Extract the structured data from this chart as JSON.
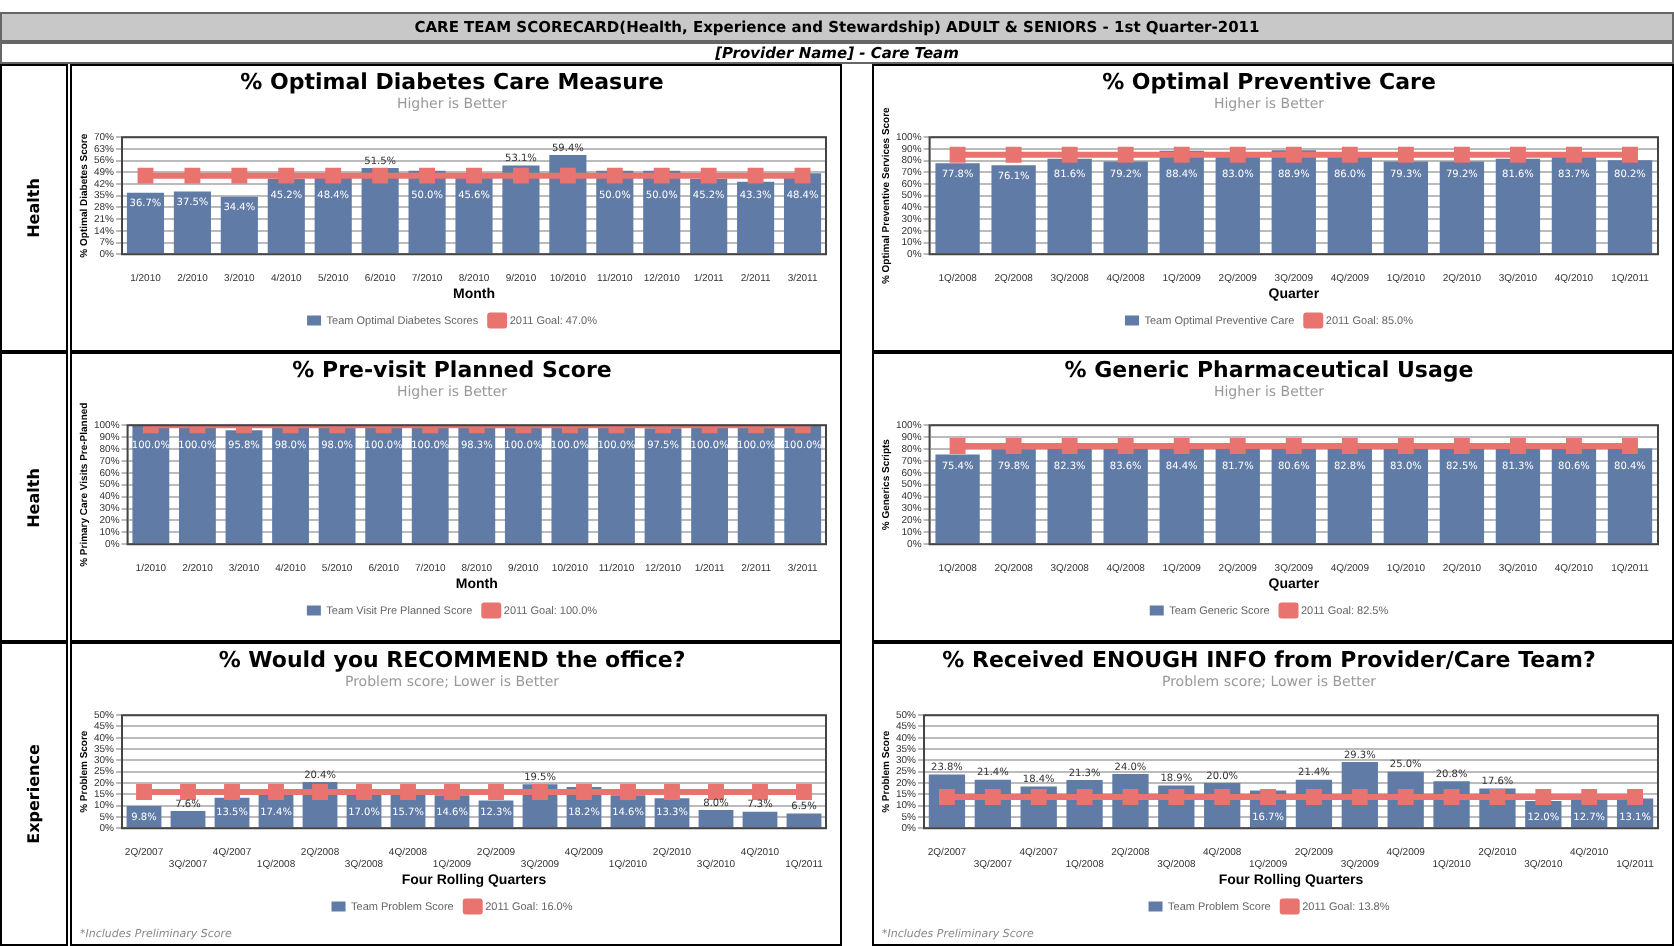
{
  "chart_data": [
    {
      "type": "other",
      "title": "CARE TEAM SCORECARD(Health, Experience and Stewardship) ADULT & SENIORS - 1st Quarter-2011",
      "subtitle": "[Provider Name] - Care Team",
      "annotations": [
        "Health",
        "Health",
        "Experience"
      ]
    },
    {
      "type": "bar",
      "title": "% Optimal Diabetes Care Measure",
      "subtitle": "Higher is Better",
      "xlabel": "Month",
      "ylabel": "% Optimal Diabetes Score",
      "categories": [
        "1/2010",
        "2/2010",
        "3/2010",
        "4/2010",
        "5/2010",
        "6/2010",
        "7/2010",
        "8/2010",
        "9/2010",
        "10/2010",
        "11/2010",
        "12/2010",
        "1/2011",
        "2/2011",
        "3/2011"
      ],
      "series": [
        {
          "name": "Team Optimal Diabetes Scores",
          "color": "#5f7ba6",
          "values": [
            36.7,
            37.5,
            34.4,
            45.2,
            48.4,
            51.5,
            50.0,
            45.6,
            53.1,
            59.4,
            50.0,
            50.0,
            45.2,
            43.3,
            48.4
          ],
          "value_labels": [
            "36.7%",
            "37.5%",
            "34.4%",
            "45.2%",
            "48.4%",
            "51.5%",
            "50.0%",
            "45.6%",
            "53.1%",
            "59.4%",
            "50.0%",
            "50.0%",
            "45.2%",
            "43.3%",
            "48.4%"
          ]
        },
        {
          "name": "2011 Goal: 47.0%",
          "type": "line",
          "color": "#e8736f",
          "marker": "square",
          "values": [
            47.0,
            47.0,
            47.0,
            47.0,
            47.0,
            47.0,
            47.0,
            47.0,
            47.0,
            47.0,
            47.0,
            47.0,
            47.0,
            47.0,
            47.0
          ]
        }
      ],
      "ylim": [
        0,
        70
      ],
      "yticks": [
        {
          "value": 0,
          "label": "0%"
        },
        {
          "value": 7,
          "label": "7%"
        },
        {
          "value": 14,
          "label": "14%"
        },
        {
          "value": 21,
          "label": "21%"
        },
        {
          "value": 28,
          "label": "28%"
        },
        {
          "value": 35,
          "label": "35%"
        },
        {
          "value": 42,
          "label": "42%"
        },
        {
          "value": 49,
          "label": "49%"
        },
        {
          "value": 56,
          "label": "56%"
        },
        {
          "value": 63,
          "label": "63%"
        },
        {
          "value": 70,
          "label": "70%"
        }
      ],
      "grid": "y",
      "legend": "bottom"
    },
    {
      "type": "bar",
      "title": "% Optimal Preventive Care",
      "subtitle": "Higher is Better",
      "xlabel": "Quarter",
      "ylabel": "% Optimal Preventive Services Score",
      "categories": [
        "1Q/2008",
        "2Q/2008",
        "3Q/2008",
        "4Q/2008",
        "1Q/2009",
        "2Q/2009",
        "3Q/2009",
        "4Q/2009",
        "1Q/2010",
        "2Q/2010",
        "3Q/2010",
        "4Q/2010",
        "1Q/2011"
      ],
      "series": [
        {
          "name": "Team Optimal Preventive Care",
          "color": "#5f7ba6",
          "values": [
            77.8,
            76.1,
            81.6,
            79.2,
            88.4,
            83.0,
            88.9,
            86.0,
            79.3,
            79.2,
            81.6,
            83.7,
            80.2
          ],
          "value_labels": [
            "77.8%",
            "76.1%",
            "81.6%",
            "79.2%",
            "88.4%",
            "83.0%",
            "88.9%",
            "86.0%",
            "79.3%",
            "79.2%",
            "81.6%",
            "83.7%",
            "80.2%"
          ]
        },
        {
          "name": "2011 Goal: 85.0%",
          "type": "line",
          "color": "#e8736f",
          "marker": "square",
          "values": [
            85.0,
            85.0,
            85.0,
            85.0,
            85.0,
            85.0,
            85.0,
            85.0,
            85.0,
            85.0,
            85.0,
            85.0,
            85.0
          ]
        }
      ],
      "ylim": [
        0,
        100
      ],
      "yticks": [
        {
          "value": 0,
          "label": "0%"
        },
        {
          "value": 10,
          "label": "10%"
        },
        {
          "value": 20,
          "label": "20%"
        },
        {
          "value": 30,
          "label": "30%"
        },
        {
          "value": 40,
          "label": "40%"
        },
        {
          "value": 50,
          "label": "50%"
        },
        {
          "value": 60,
          "label": "60%"
        },
        {
          "value": 70,
          "label": "70%"
        },
        {
          "value": 80,
          "label": "80%"
        },
        {
          "value": 90,
          "label": "90%"
        },
        {
          "value": 100,
          "label": "100%"
        }
      ],
      "grid": "y",
      "legend": "bottom"
    },
    {
      "type": "bar",
      "title": "% Pre-visit Planned Score",
      "subtitle": "Higher is Better",
      "xlabel": "Month",
      "ylabel": "% Primary Care Visits Pre-Planned",
      "categories": [
        "1/2010",
        "2/2010",
        "3/2010",
        "4/2010",
        "5/2010",
        "6/2010",
        "7/2010",
        "8/2010",
        "9/2010",
        "10/2010",
        "11/2010",
        "12/2010",
        "1/2011",
        "2/2011",
        "3/2011"
      ],
      "series": [
        {
          "name": "Team Visit Pre Planned Score",
          "color": "#5f7ba6",
          "values": [
            100.0,
            100.0,
            95.8,
            98.0,
            98.0,
            100.0,
            100.0,
            98.3,
            100.0,
            100.0,
            100.0,
            97.5,
            100.0,
            100.0,
            100.0
          ],
          "value_labels": [
            "100.0%",
            "100.0%",
            "95.8%",
            "98.0%",
            "98.0%",
            "100.0%",
            "100.0%",
            "98.3%",
            "100.0%",
            "100.0%",
            "100.0%",
            "97.5%",
            "100.0%",
            "100.0%",
            "100.0%"
          ]
        },
        {
          "name": "2011 Goal: 100.0%",
          "type": "line",
          "color": "#e8736f",
          "marker": "square",
          "values": [
            100.0,
            100.0,
            100.0,
            100.0,
            100.0,
            100.0,
            100.0,
            100.0,
            100.0,
            100.0,
            100.0,
            100.0,
            100.0,
            100.0,
            100.0
          ]
        }
      ],
      "ylim": [
        0,
        100
      ],
      "yticks": [
        {
          "value": 0,
          "label": "0%"
        },
        {
          "value": 10,
          "label": "10%"
        },
        {
          "value": 20,
          "label": "20%"
        },
        {
          "value": 30,
          "label": "30%"
        },
        {
          "value": 40,
          "label": "40%"
        },
        {
          "value": 50,
          "label": "50%"
        },
        {
          "value": 60,
          "label": "60%"
        },
        {
          "value": 70,
          "label": "70%"
        },
        {
          "value": 80,
          "label": "80%"
        },
        {
          "value": 90,
          "label": "90%"
        },
        {
          "value": 100,
          "label": "100%"
        }
      ],
      "grid": "y",
      "legend": "bottom"
    },
    {
      "type": "bar",
      "title": "% Generic Pharmaceutical Usage",
      "subtitle": "Higher is Better",
      "xlabel": "Quarter",
      "ylabel": "% Generics Scripts",
      "categories": [
        "1Q/2008",
        "2Q/2008",
        "3Q/2008",
        "4Q/2008",
        "1Q/2009",
        "2Q/2009",
        "3Q/2009",
        "4Q/2009",
        "1Q/2010",
        "2Q/2010",
        "3Q/2010",
        "4Q/2010",
        "1Q/2011"
      ],
      "series": [
        {
          "name": "Team Generic Score",
          "color": "#5f7ba6",
          "values": [
            75.4,
            79.8,
            82.3,
            83.6,
            84.4,
            81.7,
            80.6,
            82.8,
            83.0,
            82.5,
            81.3,
            80.6,
            80.4
          ],
          "value_labels": [
            "75.4%",
            "79.8%",
            "82.3%",
            "83.6%",
            "84.4%",
            "81.7%",
            "80.6%",
            "82.8%",
            "83.0%",
            "82.5%",
            "81.3%",
            "80.6%",
            "80.4%"
          ]
        },
        {
          "name": "2011 Goal: 82.5%",
          "type": "line",
          "color": "#e8736f",
          "marker": "square",
          "values": [
            82.5,
            82.5,
            82.5,
            82.5,
            82.5,
            82.5,
            82.5,
            82.5,
            82.5,
            82.5,
            82.5,
            82.5,
            82.5
          ]
        }
      ],
      "ylim": [
        0,
        100
      ],
      "yticks": [
        {
          "value": 0,
          "label": "0%"
        },
        {
          "value": 10,
          "label": "10%"
        },
        {
          "value": 20,
          "label": "20%"
        },
        {
          "value": 30,
          "label": "30%"
        },
        {
          "value": 40,
          "label": "40%"
        },
        {
          "value": 50,
          "label": "50%"
        },
        {
          "value": 60,
          "label": "60%"
        },
        {
          "value": 70,
          "label": "70%"
        },
        {
          "value": 80,
          "label": "80%"
        },
        {
          "value": 90,
          "label": "90%"
        },
        {
          "value": 100,
          "label": "100%"
        }
      ],
      "grid": "y",
      "legend": "bottom"
    },
    {
      "type": "bar",
      "title": "% Would you RECOMMEND the office?",
      "subtitle": "Problem score; Lower is Better",
      "xlabel": "Four Rolling Quarters",
      "ylabel": "% Problem Score",
      "annotations": [
        "*Includes Preliminary Score"
      ],
      "categories": [
        "2Q/2007",
        "3Q/2007",
        "4Q/2007",
        "1Q/2008",
        "2Q/2008",
        "3Q/2008",
        "4Q/2008",
        "1Q/2009",
        "2Q/2009",
        "3Q/2009",
        "4Q/2009",
        "1Q/2010",
        "2Q/2010",
        "3Q/2010",
        "4Q/2010",
        "1Q/2011"
      ],
      "series": [
        {
          "name": "Team Problem Score",
          "color": "#5f7ba6",
          "values": [
            9.8,
            7.6,
            13.5,
            17.4,
            20.4,
            17.0,
            15.7,
            14.6,
            12.3,
            19.5,
            18.2,
            14.6,
            13.3,
            8.0,
            7.3,
            6.5
          ],
          "value_labels": [
            "9.8%",
            "7.6%",
            "13.5%",
            "17.4%",
            "20.4%",
            "17.0%",
            "15.7%",
            "14.6%",
            "12.3%",
            "19.5%",
            "18.2%",
            "14.6%",
            "13.3%",
            "8.0%",
            "7.3%",
            "6.5%"
          ]
        },
        {
          "name": "2011 Goal: 16.0%",
          "type": "line",
          "color": "#e8736f",
          "marker": "square",
          "values": [
            16.0,
            16.0,
            16.0,
            16.0,
            16.0,
            16.0,
            16.0,
            16.0,
            16.0,
            16.0,
            16.0,
            16.0,
            16.0,
            16.0,
            16.0,
            16.0
          ]
        }
      ],
      "ylim": [
        0,
        50
      ],
      "yticks": [
        {
          "value": 0,
          "label": "0%"
        },
        {
          "value": 5,
          "label": "5%"
        },
        {
          "value": 10,
          "label": "10%"
        },
        {
          "value": 15,
          "label": "15%"
        },
        {
          "value": 20,
          "label": "20%"
        },
        {
          "value": 25,
          "label": "25%"
        },
        {
          "value": 30,
          "label": "30%"
        },
        {
          "value": 35,
          "label": "35%"
        },
        {
          "value": 40,
          "label": "40%"
        },
        {
          "value": 45,
          "label": "45%"
        },
        {
          "value": 50,
          "label": "50%"
        }
      ],
      "grid": "y",
      "legend": "bottom"
    },
    {
      "type": "bar",
      "title": "% Received ENOUGH INFO from Provider/Care Team?",
      "subtitle": "Problem score; Lower is Better",
      "xlabel": "Four Rolling Quarters",
      "ylabel": "% Problem Score",
      "annotations": [
        "*Includes Preliminary Score"
      ],
      "categories": [
        "2Q/2007",
        "3Q/2007",
        "4Q/2007",
        "1Q/2008",
        "2Q/2008",
        "3Q/2008",
        "4Q/2008",
        "1Q/2009",
        "2Q/2009",
        "3Q/2009",
        "4Q/2009",
        "1Q/2010",
        "2Q/2010",
        "3Q/2010",
        "4Q/2010",
        "1Q/2011"
      ],
      "series": [
        {
          "name": "Team Problem Score",
          "color": "#5f7ba6",
          "values": [
            23.8,
            21.4,
            18.4,
            21.3,
            24.0,
            18.9,
            20.0,
            16.7,
            21.4,
            29.3,
            25.0,
            20.8,
            17.6,
            12.0,
            12.7,
            13.1
          ],
          "value_labels": [
            "23.8%",
            "21.4%",
            "18.4%",
            "21.3%",
            "24.0%",
            "18.9%",
            "20.0%",
            "16.7%",
            "21.4%",
            "29.3%",
            "25.0%",
            "20.8%",
            "17.6%",
            "12.0%",
            "12.7%",
            "13.1%"
          ]
        },
        {
          "name": "2011 Goal: 13.8%",
          "type": "line",
          "color": "#e8736f",
          "marker": "square",
          "values": [
            13.8,
            13.8,
            13.8,
            13.8,
            13.8,
            13.8,
            13.8,
            13.8,
            13.8,
            13.8,
            13.8,
            13.8,
            13.8,
            13.8,
            13.8,
            13.8
          ]
        }
      ],
      "ylim": [
        0,
        50
      ],
      "yticks": [
        {
          "value": 0,
          "label": "0%"
        },
        {
          "value": 5,
          "label": "5%"
        },
        {
          "value": 10,
          "label": "10%"
        },
        {
          "value": 15,
          "label": "15%"
        },
        {
          "value": 20,
          "label": "20%"
        },
        {
          "value": 25,
          "label": "25%"
        },
        {
          "value": 30,
          "label": "30%"
        },
        {
          "value": 35,
          "label": "35%"
        },
        {
          "value": 40,
          "label": "40%"
        },
        {
          "value": 45,
          "label": "45%"
        },
        {
          "value": 50,
          "label": "50%"
        }
      ],
      "grid": "y",
      "legend": "bottom"
    }
  ]
}
